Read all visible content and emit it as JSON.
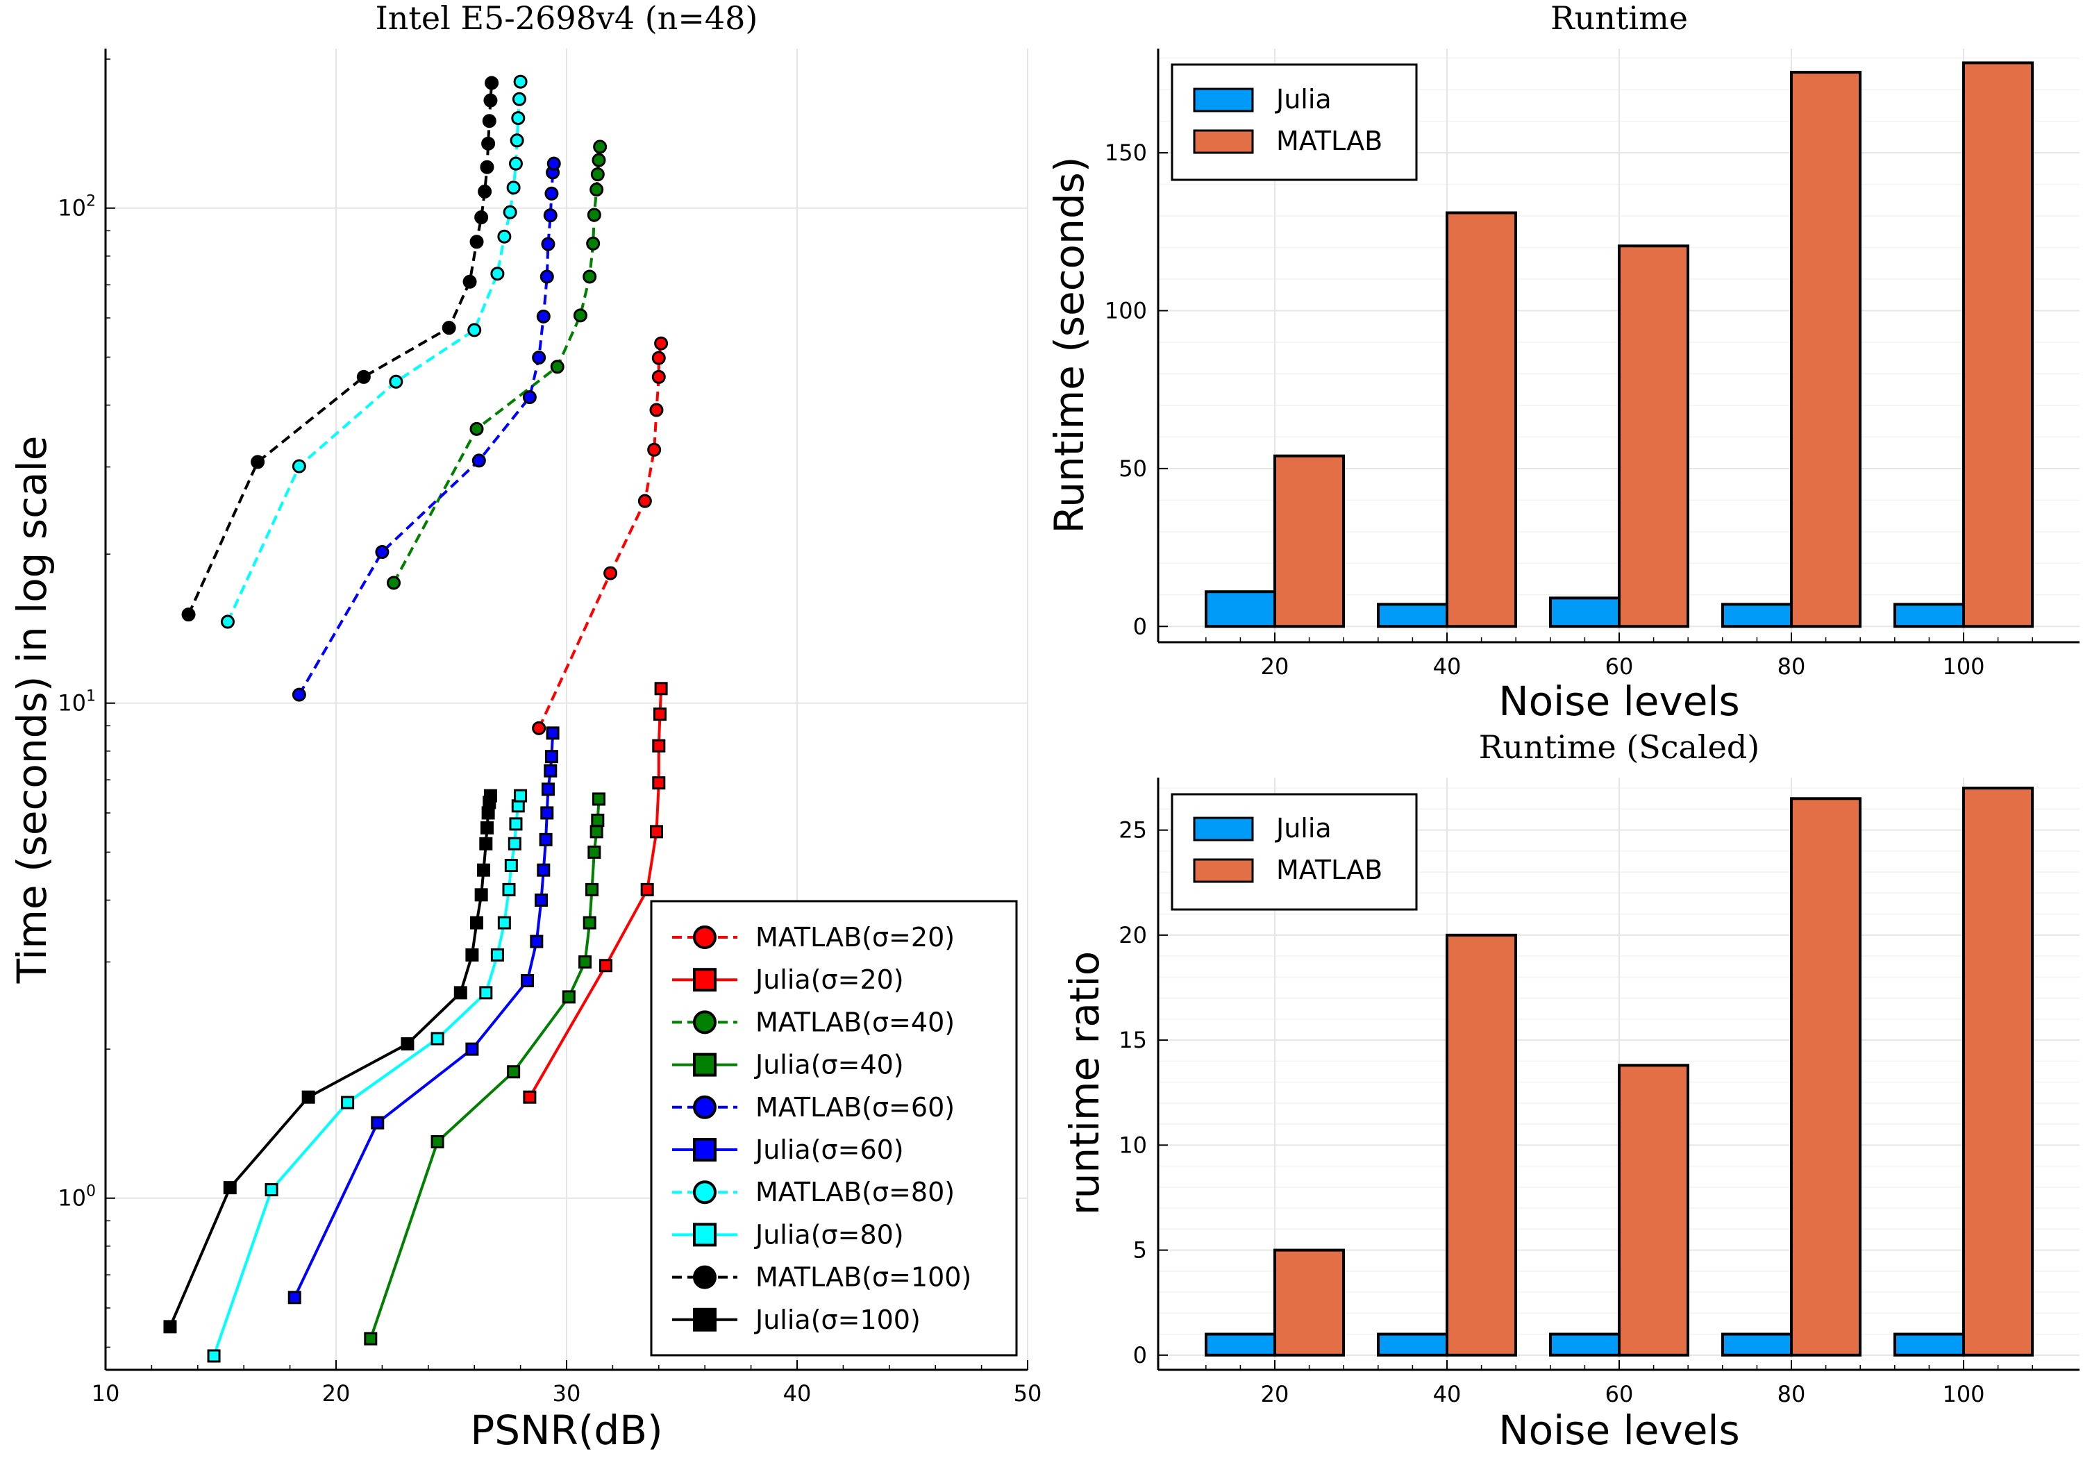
{
  "colors": {
    "red": "#ff0000",
    "green": "#008000",
    "blue": "#0000ff",
    "cyan": "#00ffff",
    "black": "#000000",
    "julia_bar": "#009af9",
    "matlab_bar": "#e26f46",
    "grid": "#e6e6e6"
  },
  "chart_data": [
    {
      "type": "line",
      "title": "Intel E5-2698v4 (n=48)",
      "xlabel": "PSNR(dB)",
      "ylabel": "Time (seconds) in log scale",
      "xlim": [
        10,
        50
      ],
      "xticks": [
        "10",
        "20",
        "30",
        "40",
        "50"
      ],
      "ylim": [
        0.45,
        210
      ],
      "yscale": "log",
      "yticks": [
        {
          "value": 1,
          "base": "10",
          "exp": "0"
        },
        {
          "value": 10,
          "base": "10",
          "exp": "1"
        },
        {
          "value": 100,
          "base": "10",
          "exp": "2"
        }
      ],
      "grid": true,
      "legend_position": "bottom-right",
      "series": [
        {
          "name": "MATLAB(σ=20)",
          "color": "red",
          "marker": "circle",
          "dash": true,
          "points": [
            [
              28.8,
              8.9
            ],
            [
              31.9,
              18.3
            ],
            [
              33.4,
              25.6
            ],
            [
              33.8,
              32.5
            ],
            [
              33.9,
              39.1
            ],
            [
              34.0,
              45.6
            ],
            [
              34.0,
              49.8
            ],
            [
              34.1,
              53.3
            ]
          ]
        },
        {
          "name": "Julia(σ=20)",
          "color": "red",
          "marker": "square",
          "dash": false,
          "points": [
            [
              28.4,
              1.6
            ],
            [
              31.7,
              2.95
            ],
            [
              33.5,
              4.2
            ],
            [
              33.9,
              5.5
            ],
            [
              34.0,
              6.9
            ],
            [
              34.0,
              8.2
            ],
            [
              34.05,
              9.5
            ],
            [
              34.1,
              10.7
            ]
          ]
        },
        {
          "name": "MATLAB(σ=40)",
          "color": "green",
          "marker": "circle",
          "dash": true,
          "points": [
            [
              22.5,
              17.5
            ],
            [
              26.1,
              35.8
            ],
            [
              29.6,
              47.8
            ],
            [
              30.6,
              60.7
            ],
            [
              31.0,
              72.7
            ],
            [
              31.15,
              84.8
            ],
            [
              31.2,
              96.9
            ],
            [
              31.3,
              109
            ],
            [
              31.35,
              117
            ],
            [
              31.4,
              125
            ],
            [
              31.45,
              133
            ]
          ]
        },
        {
          "name": "Julia(σ=40)",
          "color": "green",
          "marker": "square",
          "dash": false,
          "points": [
            [
              21.5,
              0.52
            ],
            [
              24.4,
              1.3
            ],
            [
              27.7,
              1.8
            ],
            [
              30.1,
              2.55
            ],
            [
              30.8,
              3.0
            ],
            [
              31.0,
              3.6
            ],
            [
              31.1,
              4.2
            ],
            [
              31.2,
              5.0
            ],
            [
              31.3,
              5.5
            ],
            [
              31.35,
              5.8
            ],
            [
              31.4,
              6.4
            ]
          ]
        },
        {
          "name": "MATLAB(σ=60)",
          "color": "blue",
          "marker": "circle",
          "dash": true,
          "points": [
            [
              18.4,
              10.4
            ],
            [
              22.0,
              20.2
            ],
            [
              26.2,
              30.9
            ],
            [
              28.4,
              41.5
            ],
            [
              28.8,
              49.9
            ],
            [
              29.0,
              60.4
            ],
            [
              29.15,
              72.7
            ],
            [
              29.2,
              84.6
            ],
            [
              29.3,
              96.7
            ],
            [
              29.35,
              107
            ],
            [
              29.4,
              118
            ],
            [
              29.45,
              123
            ]
          ]
        },
        {
          "name": "Julia(σ=60)",
          "color": "blue",
          "marker": "square",
          "dash": false,
          "points": [
            [
              18.2,
              0.63
            ],
            [
              21.8,
              1.42
            ],
            [
              25.9,
              2.0
            ],
            [
              28.3,
              2.75
            ],
            [
              28.7,
              3.3
            ],
            [
              28.9,
              4.0
            ],
            [
              29.0,
              4.6
            ],
            [
              29.1,
              5.3
            ],
            [
              29.15,
              6.0
            ],
            [
              29.2,
              6.7
            ],
            [
              29.3,
              7.3
            ],
            [
              29.35,
              7.8
            ],
            [
              29.4,
              8.7
            ]
          ]
        },
        {
          "name": "MATLAB(σ=80)",
          "color": "cyan",
          "marker": "circle",
          "dash": true,
          "points": [
            [
              15.3,
              14.6
            ],
            [
              18.4,
              30.1
            ],
            [
              22.6,
              44.6
            ],
            [
              26.0,
              56.7
            ],
            [
              27.0,
              73.7
            ],
            [
              27.3,
              87.6
            ],
            [
              27.55,
              98.1
            ],
            [
              27.7,
              110
            ],
            [
              27.8,
              123
            ],
            [
              27.85,
              137
            ],
            [
              27.9,
              152
            ],
            [
              27.95,
              166
            ],
            [
              28.0,
              180
            ]
          ]
        },
        {
          "name": "Julia(σ=80)",
          "color": "cyan",
          "marker": "square",
          "dash": false,
          "points": [
            [
              14.7,
              0.48
            ],
            [
              17.2,
              1.04
            ],
            [
              20.5,
              1.56
            ],
            [
              24.4,
              2.1
            ],
            [
              26.5,
              2.6
            ],
            [
              27.0,
              3.1
            ],
            [
              27.3,
              3.6
            ],
            [
              27.5,
              4.2
            ],
            [
              27.6,
              4.7
            ],
            [
              27.75,
              5.2
            ],
            [
              27.8,
              5.7
            ],
            [
              27.9,
              6.2
            ],
            [
              28.0,
              6.5
            ]
          ]
        },
        {
          "name": "MATLAB(σ=100)",
          "color": "black",
          "marker": "circle",
          "dash": true,
          "points": [
            [
              13.6,
              15.1
            ],
            [
              16.6,
              30.7
            ],
            [
              21.2,
              45.6
            ],
            [
              24.9,
              57.3
            ],
            [
              25.8,
              71.0
            ],
            [
              26.1,
              85.5
            ],
            [
              26.3,
              95.8
            ],
            [
              26.45,
              108
            ],
            [
              26.55,
              121
            ],
            [
              26.6,
              135
            ],
            [
              26.65,
              150
            ],
            [
              26.7,
              165
            ],
            [
              26.75,
              179
            ]
          ]
        },
        {
          "name": "Julia(σ=100)",
          "color": "black",
          "marker": "square",
          "dash": false,
          "points": [
            [
              12.8,
              0.55
            ],
            [
              15.4,
              1.05
            ],
            [
              18.8,
              1.6
            ],
            [
              23.1,
              2.05
            ],
            [
              25.4,
              2.6
            ],
            [
              25.9,
              3.1
            ],
            [
              26.1,
              3.6
            ],
            [
              26.3,
              4.1
            ],
            [
              26.4,
              4.6
            ],
            [
              26.5,
              5.2
            ],
            [
              26.55,
              5.6
            ],
            [
              26.6,
              6.0
            ],
            [
              26.65,
              6.3
            ],
            [
              26.7,
              6.5
            ]
          ]
        }
      ]
    },
    {
      "type": "bar",
      "title": "Runtime",
      "xlabel": "Noise levels",
      "ylabel": "Runtime (seconds)",
      "categories": [
        "20",
        "40",
        "60",
        "80",
        "100"
      ],
      "ylim": [
        -5,
        183
      ],
      "yticks": [
        0,
        50,
        100,
        150
      ],
      "grid": true,
      "legend_position": "top-left",
      "series": [
        {
          "name": "Julia",
          "color": "julia_bar",
          "values": [
            11.0,
            7.0,
            9.0,
            7.0,
            7.0
          ]
        },
        {
          "name": "MATLAB",
          "color": "matlab_bar",
          "values": [
            54.0,
            131.0,
            120.5,
            175.5,
            178.5
          ]
        }
      ]
    },
    {
      "type": "bar",
      "title": "Runtime (Scaled)",
      "xlabel": "Noise levels",
      "ylabel": "runtime ratio",
      "categories": [
        "20",
        "40",
        "60",
        "80",
        "100"
      ],
      "ylim": [
        -0.7,
        27.5
      ],
      "yticks": [
        0,
        5,
        10,
        15,
        20,
        25
      ],
      "grid": true,
      "legend_position": "top-left",
      "series": [
        {
          "name": "Julia",
          "color": "julia_bar",
          "values": [
            1,
            1,
            1,
            1,
            1
          ]
        },
        {
          "name": "MATLAB",
          "color": "matlab_bar",
          "values": [
            5.0,
            20.0,
            13.8,
            26.5,
            27.0
          ]
        }
      ]
    }
  ]
}
